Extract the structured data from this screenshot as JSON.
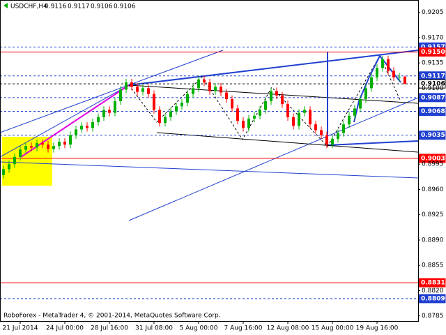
{
  "chart_data": {
    "type": "candlestick",
    "symbol": "USDCHF,H4",
    "footer": "RoboForex - MetaTrader 4, © 2001-2014, MetaQuotes Software Corp.",
    "categories": [
      null,
      null,
      null,
      "21 Jul 2014",
      null,
      null,
      null,
      null,
      null,
      null,
      null,
      "24 Jul 00:00",
      null,
      null,
      null,
      null,
      null,
      null,
      null,
      "28 Jul 16:00",
      null,
      null,
      null,
      null,
      null,
      null,
      null,
      "31 Jul 08:00",
      null,
      null,
      null,
      null,
      null,
      null,
      null,
      "5 Aug 00:00",
      null,
      null,
      null,
      null,
      null,
      null,
      null,
      "7 Aug 16:00",
      null,
      null,
      null,
      null,
      null,
      null,
      null,
      "12 Aug 08:00",
      null,
      null,
      null,
      null,
      null,
      null,
      null,
      "15 Aug 00:00",
      null,
      null,
      null,
      null,
      null,
      null,
      null,
      "19 Aug 16:00",
      null,
      null,
      null,
      null,
      null
    ],
    "open": [
      0.898,
      0.8988,
      0.8995,
      0.9005,
      0.9015,
      0.902,
      0.9018,
      0.9024,
      0.9022,
      0.9016,
      0.902,
      0.9026,
      0.9022,
      0.9035,
      0.9043,
      0.9048,
      0.9045,
      0.9053,
      0.906,
      0.907,
      0.9066,
      0.9082,
      0.9098,
      0.9108,
      0.9102,
      0.9095,
      0.91,
      0.9092,
      0.907,
      0.9052,
      0.906,
      0.9068,
      0.9075,
      0.908,
      0.9092,
      0.91,
      0.9112,
      0.9108,
      0.9096,
      0.9102,
      0.9094,
      0.9085,
      0.9072,
      0.9055,
      0.9045,
      0.9058,
      0.9062,
      0.907,
      0.9082,
      0.9096,
      0.909,
      0.9078,
      0.906,
      0.9048,
      0.9066,
      0.907,
      0.905,
      0.9042,
      0.9035,
      0.9022,
      0.903,
      0.9038,
      0.905,
      0.9062,
      0.9072,
      0.9085,
      0.91,
      0.9115,
      0.9128,
      0.914,
      0.9124,
      0.9115,
      0.9116
    ],
    "high": [
      0.8993,
      0.9,
      0.901,
      0.902,
      0.9025,
      0.9025,
      0.9029,
      0.9029,
      0.9027,
      0.9025,
      0.9031,
      0.9031,
      0.904,
      0.9048,
      0.9053,
      0.9053,
      0.9058,
      0.9065,
      0.9075,
      0.9075,
      0.9087,
      0.9103,
      0.9113,
      0.9113,
      0.9107,
      0.9105,
      0.9105,
      0.9097,
      0.9075,
      0.9065,
      0.9073,
      0.908,
      0.9085,
      0.9097,
      0.9105,
      0.9117,
      0.9117,
      0.9113,
      0.9107,
      0.9107,
      0.9099,
      0.909,
      0.9077,
      0.906,
      0.9063,
      0.9067,
      0.9075,
      0.9087,
      0.9101,
      0.9101,
      0.9095,
      0.9083,
      0.9065,
      0.9071,
      0.9075,
      0.9075,
      0.9055,
      0.9047,
      0.904,
      0.9035,
      0.9043,
      0.9055,
      0.9067,
      0.9077,
      0.909,
      0.9105,
      0.912,
      0.9133,
      0.9145,
      0.9145,
      0.9129,
      0.9121,
      0.9117
    ],
    "low": [
      0.8975,
      0.8983,
      0.899,
      0.9,
      0.901,
      0.9013,
      0.9013,
      0.9017,
      0.9011,
      0.9011,
      0.9015,
      0.9017,
      0.9017,
      0.903,
      0.9038,
      0.904,
      0.904,
      0.9048,
      0.9055,
      0.9061,
      0.9061,
      0.9077,
      0.9093,
      0.9097,
      0.909,
      0.909,
      0.9087,
      0.9065,
      0.9047,
      0.9047,
      0.9055,
      0.9063,
      0.907,
      0.9075,
      0.9087,
      0.9095,
      0.9103,
      0.9091,
      0.9091,
      0.9089,
      0.908,
      0.9067,
      0.905,
      0.904,
      0.904,
      0.9053,
      0.9057,
      0.9065,
      0.9077,
      0.9085,
      0.9073,
      0.9055,
      0.9043,
      0.9043,
      0.9061,
      0.9045,
      0.9037,
      0.903,
      0.9017,
      0.9017,
      0.9025,
      0.9033,
      0.9045,
      0.9057,
      0.9067,
      0.908,
      0.9095,
      0.911,
      0.9123,
      0.9119,
      0.911,
      0.911,
      0.9106
    ],
    "close": [
      0.8988,
      0.8995,
      0.9005,
      0.9015,
      0.902,
      0.9018,
      0.9024,
      0.9022,
      0.9016,
      0.902,
      0.9026,
      0.9022,
      0.9035,
      0.9043,
      0.9048,
      0.9045,
      0.9053,
      0.906,
      0.907,
      0.9066,
      0.9082,
      0.9098,
      0.9108,
      0.9102,
      0.9095,
      0.91,
      0.9092,
      0.907,
      0.9052,
      0.906,
      0.9068,
      0.9075,
      0.908,
      0.9092,
      0.91,
      0.9112,
      0.9108,
      0.9096,
      0.9102,
      0.9094,
      0.9085,
      0.9072,
      0.9055,
      0.9045,
      0.9058,
      0.9062,
      0.907,
      0.9082,
      0.9096,
      0.909,
      0.9078,
      0.906,
      0.9048,
      0.9066,
      0.907,
      0.905,
      0.9042,
      0.9035,
      0.9022,
      0.903,
      0.9038,
      0.905,
      0.9062,
      0.9072,
      0.9085,
      0.91,
      0.9115,
      0.9128,
      0.914,
      0.9124,
      0.9115,
      0.9116,
      0.9106
    ],
    "up_color": "#00b000",
    "down_color": "#ff0000",
    "ylim": [
      0.8778,
      0.9222
    ],
    "yticks": [
      0.9205,
      {
        "value": 0.917,
        "label": "0.9170"
      },
      0.9135,
      {
        "value": 0.91,
        "label": "0.9100"
      },
      0.8995,
      {
        "value": 0.896,
        "label": "0.8960"
      },
      0.8925,
      {
        "value": 0.889,
        "label": "0.8890"
      },
      0.8855,
      {
        "value": 0.882,
        "label": "0.8820"
      },
      0.8785
    ],
    "levels": [
      {
        "value": 0.9157,
        "color": "#2040d0",
        "dash": true
      },
      {
        "value": 0.915,
        "label": "0.9150",
        "color": "#ff0000",
        "dash": false
      },
      {
        "value": 0.9117,
        "color": "#2040d0",
        "dash": true
      },
      {
        "value": 0.9106,
        "color": "#000000",
        "dash": true
      },
      {
        "value": 0.9087,
        "color": "#2040d0",
        "dash": true
      },
      {
        "value": 0.9068,
        "color": "#2040d0",
        "dash": true
      },
      {
        "value": 0.9035,
        "color": "#2040d0",
        "dash": true
      },
      {
        "value": 0.9003,
        "color": "#ff0000",
        "dash": false
      },
      {
        "value": 0.8831,
        "color": "#ff0000",
        "dash": false
      },
      {
        "value": 0.8809,
        "color": "#2040d0",
        "dash": true
      }
    ]
  }
}
